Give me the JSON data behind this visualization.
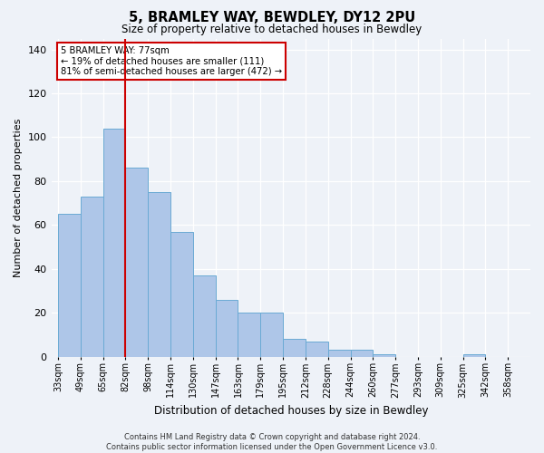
{
  "title": "5, BRAMLEY WAY, BEWDLEY, DY12 2PU",
  "subtitle": "Size of property relative to detached houses in Bewdley",
  "xlabel": "Distribution of detached houses by size in Bewdley",
  "ylabel": "Number of detached properties",
  "bins": [
    "33sqm",
    "49sqm",
    "65sqm",
    "82sqm",
    "98sqm",
    "114sqm",
    "130sqm",
    "147sqm",
    "163sqm",
    "179sqm",
    "195sqm",
    "212sqm",
    "228sqm",
    "244sqm",
    "260sqm",
    "277sqm",
    "293sqm",
    "309sqm",
    "325sqm",
    "342sqm",
    "358sqm"
  ],
  "values": [
    65,
    73,
    104,
    86,
    75,
    57,
    37,
    26,
    20,
    20,
    8,
    7,
    3,
    3,
    1,
    0,
    0,
    0,
    1,
    0,
    0
  ],
  "bar_color": "#aec6e8",
  "bar_edge_color": "#6aaad4",
  "vline_color": "#cc0000",
  "annotation_title": "5 BRAMLEY WAY: 77sqm",
  "annotation_line1": "← 19% of detached houses are smaller (111)",
  "annotation_line2": "81% of semi-detached houses are larger (472) →",
  "annotation_box_color": "white",
  "annotation_box_edge": "#cc0000",
  "ylim": [
    0,
    145
  ],
  "yticks": [
    0,
    20,
    40,
    60,
    80,
    100,
    120,
    140
  ],
  "footer_line1": "Contains HM Land Registry data © Crown copyright and database right 2024.",
  "footer_line2": "Contains public sector information licensed under the Open Government Licence v3.0.",
  "background_color": "#eef2f8",
  "grid_color": "#ffffff",
  "vline_bin_index": 3
}
